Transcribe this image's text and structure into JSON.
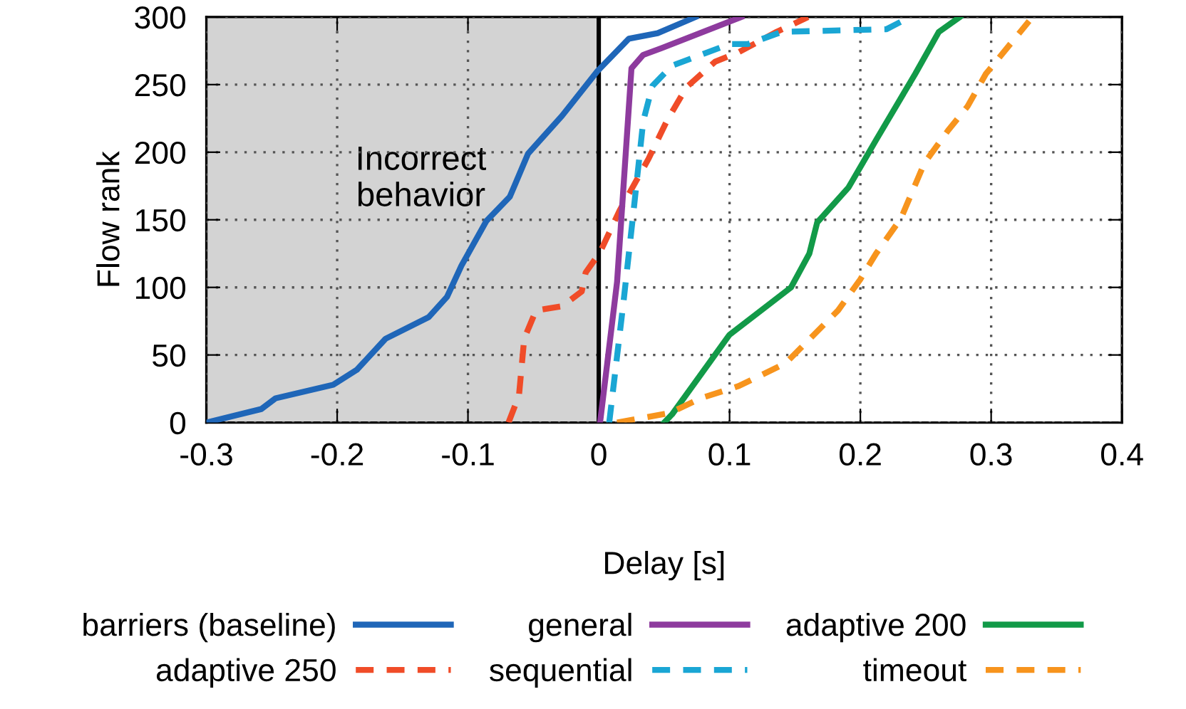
{
  "chart_data": {
    "type": "line",
    "xlabel": "Delay [s]",
    "ylabel": "Flow rank",
    "xlim": [
      -0.3,
      0.4
    ],
    "xticks": [
      -0.3,
      -0.2,
      -0.1,
      0,
      0.1,
      0.2,
      0.3,
      0.4
    ],
    "ylim": [
      0,
      300
    ],
    "yticks": [
      0,
      50,
      100,
      150,
      200,
      250,
      300
    ],
    "grid": true,
    "legend": "bottom",
    "marker": "none",
    "bands": [
      {
        "axis": "x",
        "from": -0.3,
        "to": 0,
        "label": "Incorrect\nbehavior",
        "color": "#d3d3d3"
      }
    ],
    "ref_lines": [
      {
        "axis": "x",
        "value": 0,
        "color": "#000000",
        "line_style": "solid"
      }
    ],
    "series": [
      {
        "name": "barriers (baseline)",
        "color": "#1f66b8",
        "line_style": "solid",
        "x": [
          -0.3,
          -0.258,
          -0.247,
          -0.203,
          -0.185,
          -0.163,
          -0.13,
          -0.116,
          -0.105,
          -0.086,
          -0.068,
          -0.054,
          -0.028,
          -0.001,
          0.023,
          0.045,
          0.074
        ],
        "values": [
          0,
          10,
          18,
          28,
          39,
          62,
          78,
          93,
          116,
          149,
          167,
          199,
          227,
          260,
          284,
          288,
          300
        ]
      },
      {
        "name": "adaptive 250",
        "color": "#f04c28",
        "line_style": "dashed",
        "x": [
          -0.069,
          -0.061,
          -0.057,
          -0.048,
          -0.028,
          -0.013,
          -0.01,
          0.001,
          0.016,
          0.038,
          0.052,
          0.067,
          0.089,
          0.107,
          0.136,
          0.16
        ],
        "values": [
          0,
          20,
          62,
          83,
          86,
          97,
          111,
          126,
          157,
          195,
          223,
          248,
          267,
          274,
          289,
          300
        ]
      },
      {
        "name": "general",
        "color": "#8e3b9e",
        "line_style": "solid",
        "x": [
          0.001,
          0.014,
          0.025,
          0.034,
          0.048,
          0.109
        ],
        "values": [
          0,
          104,
          262,
          272,
          277,
          300
        ]
      },
      {
        "name": "sequential",
        "color": "#1aa6d4",
        "line_style": "dashed",
        "x": [
          0.008,
          0.019,
          0.027,
          0.034,
          0.041,
          0.056,
          0.1,
          0.114,
          0.14,
          0.22,
          0.238
        ],
        "values": [
          0,
          90,
          160,
          223,
          249,
          264,
          280,
          280,
          289,
          291,
          300
        ]
      },
      {
        "name": "adaptive 200",
        "color": "#129a48",
        "line_style": "solid",
        "x": [
          0.05,
          0.056,
          0.1,
          0.147,
          0.161,
          0.167,
          0.191,
          0.212,
          0.242,
          0.26,
          0.276
        ],
        "values": [
          0,
          6,
          65,
          100,
          125,
          148,
          174,
          209,
          258,
          289,
          300
        ]
      },
      {
        "name": "timeout",
        "color": "#f7941d",
        "line_style": "dashed",
        "x": [
          0.014,
          0.054,
          0.078,
          0.107,
          0.143,
          0.183,
          0.2,
          0.212,
          0.231,
          0.249,
          0.267,
          0.282,
          0.296,
          0.329
        ],
        "values": [
          0,
          7,
          18,
          27,
          44,
          83,
          106,
          125,
          151,
          192,
          216,
          234,
          258,
          297
        ]
      }
    ]
  }
}
